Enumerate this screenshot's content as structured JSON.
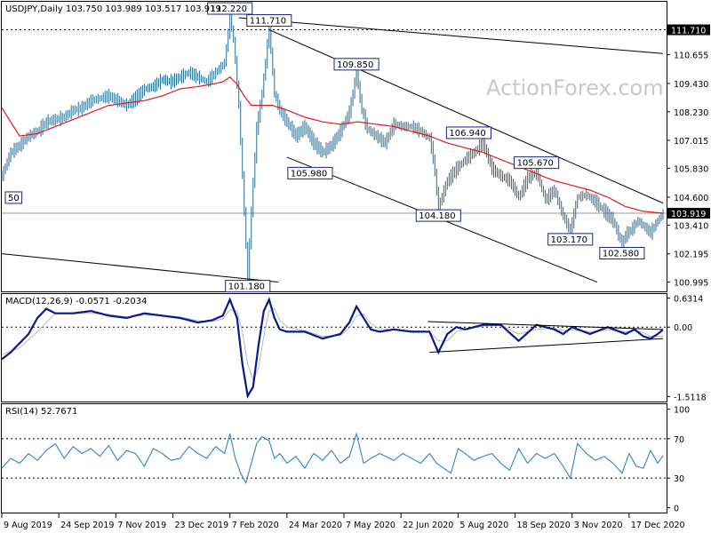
{
  "watermark": "ActionForex.com",
  "colors": {
    "price": "#2b6c8f",
    "ma": "#e01b1b",
    "macd": "#0a1a86",
    "signal": "#b9b9b9",
    "rsi": "#2e86c1",
    "frame": "#000000",
    "current_box": "#000000",
    "label_border": "#1a237e"
  },
  "chart_data": [
    {
      "type": "line",
      "panel": "price",
      "title": "USDJPY,Daily  103.750 103.989 103.517 103.919",
      "ylim": [
        100.6,
        112.9
      ],
      "y_ticks": [
        "111.710",
        "110.655",
        "109.430",
        "108.230",
        "107.015",
        "105.830",
        "104.600",
        "103.919",
        "103.410",
        "102.195",
        "100.995"
      ],
      "y_tick_values": [
        111.71,
        110.655,
        109.43,
        108.23,
        107.015,
        105.83,
        104.6,
        103.919,
        103.41,
        102.195,
        100.995
      ],
      "x_ticks": [
        "9 Aug 2019",
        "24 Sep 2019",
        "7 Nov 2019",
        "23 Dec 2019",
        "7 Feb 2020",
        "24 Mar 2020",
        "7 May 2020",
        "22 Jun 2020",
        "5 Aug 2020",
        "18 Sep 2020",
        "3 Nov 2020",
        "17 Dec 2020"
      ],
      "x_tick_index": [
        0,
        32,
        64,
        96,
        128,
        160,
        192,
        224,
        256,
        288,
        320,
        352
      ],
      "x_count": 372,
      "series": [
        {
          "role": "price",
          "x": [
            0,
            5,
            10,
            15,
            20,
            25,
            30,
            35,
            40,
            45,
            50,
            55,
            60,
            65,
            70,
            75,
            80,
            85,
            90,
            95,
            100,
            105,
            110,
            115,
            120,
            125,
            128,
            130,
            133,
            136,
            138,
            140,
            143,
            146,
            150,
            153,
            156,
            160,
            165,
            170,
            175,
            180,
            185,
            190,
            195,
            199,
            202,
            205,
            210,
            215,
            220,
            225,
            230,
            235,
            240,
            242,
            245,
            250,
            255,
            260,
            265,
            270,
            275,
            280,
            285,
            290,
            295,
            300,
            305,
            310,
            315,
            319,
            323,
            328,
            333,
            338,
            343,
            348,
            350,
            353,
            357,
            361,
            364,
            368,
            371
          ],
          "values": [
            105.5,
            106.5,
            106.8,
            107.2,
            107.4,
            107.8,
            107.9,
            108.0,
            108.3,
            108.4,
            108.7,
            108.8,
            108.9,
            108.7,
            108.5,
            108.8,
            109.2,
            109.3,
            109.6,
            109.5,
            109.7,
            109.9,
            109.7,
            109.5,
            109.9,
            110.3,
            112.22,
            111.3,
            108.5,
            104.0,
            101.18,
            104.0,
            107.5,
            109.0,
            111.71,
            109.0,
            108.3,
            107.8,
            107.2,
            107.6,
            106.9,
            106.5,
            106.8,
            107.4,
            108.2,
            109.85,
            108.3,
            107.5,
            107.2,
            106.9,
            107.7,
            107.6,
            107.6,
            107.4,
            107.1,
            106.3,
            104.18,
            105.3,
            105.8,
            106.2,
            106.5,
            106.9,
            105.8,
            105.5,
            105.3,
            104.6,
            105.4,
            105.67,
            104.5,
            104.9,
            103.8,
            103.17,
            104.6,
            104.7,
            104.4,
            104.0,
            103.6,
            102.58,
            103.0,
            103.2,
            103.6,
            103.3,
            103.1,
            103.6,
            103.919
          ]
        },
        {
          "role": "ma",
          "x": [
            0,
            10,
            20,
            30,
            40,
            50,
            60,
            70,
            80,
            90,
            100,
            110,
            118,
            124,
            128,
            132,
            136,
            140,
            146,
            152,
            160,
            170,
            180,
            190,
            200,
            210,
            220,
            230,
            240,
            250,
            260,
            270,
            280,
            290,
            300,
            310,
            320,
            330,
            340,
            350,
            360,
            371
          ],
          "values": [
            108.4,
            107.2,
            107.3,
            107.6,
            107.9,
            108.2,
            108.5,
            108.6,
            108.7,
            108.9,
            109.2,
            109.3,
            109.4,
            109.5,
            109.7,
            109.4,
            108.9,
            108.5,
            108.5,
            108.5,
            108.3,
            108.0,
            107.8,
            107.7,
            107.8,
            107.7,
            107.6,
            107.4,
            107.2,
            106.9,
            106.7,
            106.5,
            106.2,
            105.9,
            105.6,
            105.3,
            105.1,
            104.9,
            104.6,
            104.2,
            104.0,
            103.919
          ]
        }
      ],
      "annotations": [
        {
          "text": "112.220",
          "x": 128,
          "y": 112.22,
          "pos": "above"
        },
        {
          "text": "111.710",
          "x": 150,
          "y": 111.71,
          "pos": "above"
        },
        {
          "text": "101.180",
          "x": 138,
          "y": 101.18,
          "pos": "below"
        },
        {
          "text": "109.850",
          "x": 199,
          "y": 109.85,
          "pos": "above"
        },
        {
          "text": "105.980",
          "x": 173,
          "y": 105.98,
          "pos": "below"
        },
        {
          "text": "104.180",
          "x": 245,
          "y": 104.18,
          "pos": "below"
        },
        {
          "text": "106.940",
          "x": 262,
          "y": 106.94,
          "pos": "above"
        },
        {
          "text": "105.670",
          "x": 300,
          "y": 105.67,
          "pos": "above"
        },
        {
          "text": "103.170",
          "x": 319,
          "y": 103.17,
          "pos": "below"
        },
        {
          "text": "102.580",
          "x": 348,
          "y": 102.58,
          "pos": "below"
        },
        {
          "text": "50",
          "x": 2,
          "y": 104.6,
          "pos": "left"
        }
      ],
      "trendlines": [
        {
          "x": [
            133,
            371
          ],
          "values": [
            112.22,
            110.7
          ]
        },
        {
          "x": [
            150,
            371
          ],
          "values": [
            111.71,
            104.35
          ]
        },
        {
          "x": [
            160,
            334
          ],
          "values": [
            106.3,
            100.995
          ]
        },
        {
          "x": [
            0,
            155
          ],
          "values": [
            102.2,
            100.995
          ]
        }
      ],
      "hlines": [
        {
          "y": 111.71,
          "style": "dotted"
        },
        {
          "y": 103.919,
          "style": "solid"
        }
      ],
      "current": "103.919"
    },
    {
      "type": "line",
      "panel": "macd",
      "title": "MACD(12,26,9) -0.0571 -0.2034",
      "ylim": [
        -1.62,
        0.72
      ],
      "y_ticks": [
        "0.6314",
        "0.00",
        "-1.5118"
      ],
      "y_tick_values": [
        0.6314,
        0.0,
        -1.5118
      ],
      "series": [
        {
          "role": "macd",
          "x": [
            0,
            5,
            10,
            15,
            20,
            25,
            30,
            40,
            50,
            60,
            70,
            80,
            90,
            100,
            110,
            118,
            124,
            128,
            132,
            135,
            138,
            141,
            144,
            147,
            150,
            153,
            156,
            160,
            170,
            180,
            190,
            195,
            199,
            203,
            207,
            212,
            220,
            230,
            240,
            245,
            250,
            255,
            260,
            270,
            280,
            290,
            300,
            310,
            315,
            320,
            330,
            340,
            350,
            355,
            360,
            364,
            368,
            371
          ],
          "values": [
            -0.7,
            -0.55,
            -0.35,
            -0.15,
            0.2,
            0.4,
            0.3,
            0.3,
            0.35,
            0.25,
            0.2,
            0.3,
            0.25,
            0.2,
            0.1,
            0.15,
            0.25,
            0.6,
            0.2,
            -0.8,
            -1.5,
            -1.3,
            -0.4,
            0.35,
            0.6,
            0.2,
            -0.05,
            -0.1,
            -0.1,
            -0.25,
            -0.15,
            0.1,
            0.45,
            0.2,
            -0.05,
            -0.1,
            -0.05,
            -0.1,
            -0.1,
            -0.55,
            -0.15,
            0.0,
            -0.05,
            0.05,
            0.05,
            -0.3,
            0.05,
            -0.05,
            -0.15,
            0.0,
            -0.15,
            0.0,
            -0.15,
            -0.05,
            -0.2,
            -0.25,
            -0.15,
            -0.0571
          ]
        },
        {
          "role": "signal",
          "x": [
            0,
            10,
            20,
            30,
            40,
            50,
            60,
            70,
            80,
            90,
            100,
            110,
            118,
            124,
            128,
            132,
            135,
            138,
            141,
            144,
            147,
            150,
            153,
            156,
            160,
            170,
            180,
            190,
            195,
            199,
            203,
            207,
            212,
            220,
            230,
            240,
            245,
            250,
            255,
            260,
            270,
            280,
            290,
            300,
            310,
            315,
            320,
            330,
            340,
            350,
            355,
            360,
            364,
            368,
            371
          ],
          "values": [
            -0.6,
            -0.45,
            -0.1,
            0.3,
            0.3,
            0.3,
            0.28,
            0.22,
            0.26,
            0.25,
            0.22,
            0.14,
            0.12,
            0.18,
            0.38,
            0.35,
            -0.1,
            -0.8,
            -1.15,
            -0.9,
            -0.2,
            0.35,
            0.4,
            0.15,
            0.0,
            -0.08,
            -0.2,
            -0.18,
            -0.02,
            0.25,
            0.28,
            0.08,
            -0.04,
            -0.06,
            -0.08,
            -0.1,
            -0.3,
            -0.3,
            -0.1,
            -0.05,
            0.02,
            0.04,
            -0.15,
            -0.05,
            -0.02,
            -0.08,
            -0.06,
            -0.1,
            -0.06,
            -0.1,
            -0.08,
            -0.12,
            -0.2,
            -0.2,
            -0.2034
          ]
        }
      ],
      "trendlines": [
        {
          "x": [
            239,
            371
          ],
          "values": [
            0.12,
            -0.05
          ]
        },
        {
          "x": [
            240,
            371
          ],
          "values": [
            -0.55,
            -0.25
          ]
        }
      ]
    },
    {
      "type": "line",
      "panel": "rsi",
      "title": "RSI(14) 52.7671",
      "ylim": [
        -5,
        105
      ],
      "y_ticks": [
        "100",
        "70",
        "30",
        "0"
      ],
      "y_tick_values": [
        100,
        70,
        30,
        0
      ],
      "series": [
        {
          "role": "rsi",
          "x": [
            0,
            5,
            10,
            15,
            20,
            25,
            30,
            35,
            40,
            45,
            50,
            55,
            60,
            65,
            70,
            75,
            80,
            85,
            90,
            95,
            100,
            105,
            110,
            115,
            120,
            125,
            128,
            131,
            134,
            137,
            140,
            143,
            146,
            150,
            153,
            156,
            160,
            165,
            170,
            175,
            180,
            185,
            190,
            195,
            199,
            203,
            207,
            212,
            220,
            225,
            230,
            235,
            240,
            244,
            248,
            252,
            256,
            260,
            265,
            270,
            275,
            280,
            285,
            290,
            295,
            300,
            305,
            310,
            315,
            319,
            323,
            328,
            333,
            338,
            343,
            348,
            352,
            356,
            360,
            364,
            368,
            371
          ],
          "values": [
            40,
            50,
            45,
            55,
            48,
            58,
            65,
            50,
            62,
            55,
            60,
            52,
            63,
            48,
            58,
            55,
            42,
            60,
            55,
            48,
            50,
            62,
            55,
            50,
            62,
            55,
            75,
            50,
            35,
            25,
            45,
            65,
            72,
            68,
            50,
            55,
            45,
            52,
            40,
            55,
            48,
            58,
            45,
            52,
            75,
            45,
            50,
            55,
            48,
            55,
            50,
            45,
            55,
            45,
            40,
            35,
            60,
            55,
            48,
            52,
            55,
            45,
            38,
            60,
            45,
            55,
            50,
            55,
            42,
            30,
            65,
            55,
            48,
            52,
            45,
            35,
            55,
            42,
            40,
            58,
            45,
            52.7671
          ]
        }
      ]
    }
  ]
}
